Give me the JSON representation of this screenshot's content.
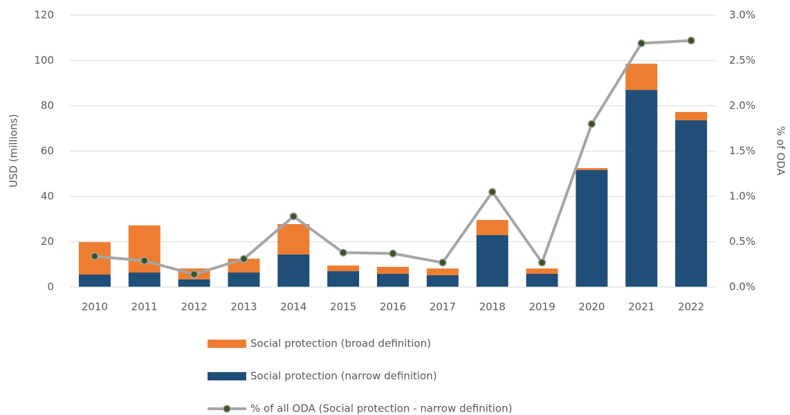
{
  "chart_data": {
    "type": "bar",
    "stacked": true,
    "y_label": "USD (millions)",
    "y2_label": "% of ODA",
    "categories": [
      "2010",
      "2011",
      "2012",
      "2013",
      "2014",
      "2015",
      "2016",
      "2017",
      "2018",
      "2019",
      "2020",
      "2021",
      "2022"
    ],
    "series": [
      {
        "name": "Social protection (broad definition)",
        "color": "#ed7d31",
        "type": "bar",
        "values": [
          14.3,
          20.8,
          4.8,
          6.1,
          13.4,
          2.5,
          3.1,
          3.0,
          6.7,
          2.4,
          0.9,
          11.6,
          3.7
        ]
      },
      {
        "name": "Social protection (narrow definition)",
        "color": "#1f4e79",
        "type": "bar",
        "values": [
          5.5,
          6.4,
          3.4,
          6.4,
          14.4,
          7.0,
          5.8,
          5.2,
          22.9,
          5.8,
          51.6,
          87.0,
          73.6
        ]
      },
      {
        "name": "% of all ODA (Social protection - narrow definition)",
        "color": "#a5a5a5",
        "marker_color": "#375623",
        "type": "line",
        "axis": "y2",
        "values": [
          0.34,
          0.29,
          0.14,
          0.31,
          0.78,
          0.38,
          0.37,
          0.27,
          1.05,
          0.27,
          1.8,
          2.69,
          2.72
        ]
      }
    ],
    "ylim": [
      0,
      120
    ],
    "yticks": [
      0,
      20,
      40,
      60,
      80,
      100,
      120
    ],
    "y2lim": [
      0,
      3.0
    ],
    "y2ticks": [
      {
        "value": 0,
        "label": "0.0%"
      },
      {
        "value": 0.5,
        "label": "0.5%"
      },
      {
        "value": 1.0,
        "label": "1.0%"
      },
      {
        "value": 1.5,
        "label": "1.5%"
      },
      {
        "value": 2.0,
        "label": "2.0%"
      },
      {
        "value": 2.5,
        "label": "2.5%"
      },
      {
        "value": 3.0,
        "label": "3.0%"
      }
    ],
    "grid": true,
    "legend": "bottom"
  }
}
